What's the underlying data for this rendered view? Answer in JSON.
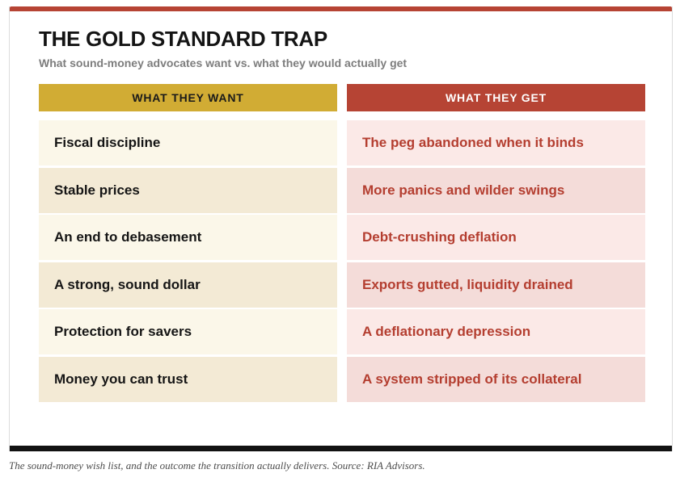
{
  "title": "THE GOLD STANDARD TRAP",
  "subtitle": "What sound-money advocates want vs. what they would actually get",
  "want_column": {
    "header": "WHAT THEY WANT",
    "items": [
      "Fiscal discipline",
      "Stable prices",
      "An end to debasement",
      "A strong, sound dollar",
      "Protection for savers",
      "Money you can trust"
    ]
  },
  "get_column": {
    "header": "WHAT THEY GET",
    "items": [
      "The peg abandoned when it binds",
      "More panics and wilder swings",
      "Debt-crushing deflation",
      "Exports gutted, liquidity drained",
      "A deflationary depression",
      "A system stripped of its collateral"
    ]
  },
  "caption": "The sound-money wish list, and the outcome the transition actually delivers. Source: RIA Advisors.",
  "colors": {
    "accent_red": "#b64434",
    "accent_gold": "#d1ac34"
  }
}
